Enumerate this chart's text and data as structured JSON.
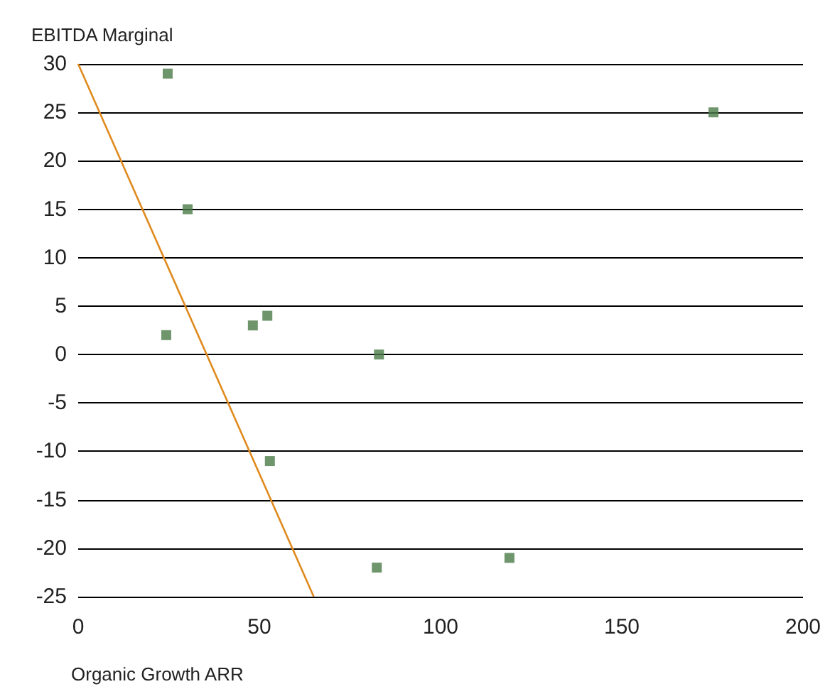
{
  "chart_data": {
    "type": "scatter",
    "ylabel": "EBITDA Marginal",
    "xlabel": "Organic Growth ARR",
    "xlim": [
      0,
      200
    ],
    "xticks": [
      0,
      50,
      100,
      150,
      200
    ],
    "ylim": [
      -25,
      30
    ],
    "yticks": [
      -25,
      -20,
      -15,
      -10,
      -5,
      0,
      5,
      10,
      15,
      20,
      25,
      30
    ],
    "grid": "y",
    "marker": "square",
    "series": [
      {
        "color": "#4a7a46",
        "x": [
          24.7,
          30.2,
          24.3,
          48.2,
          52.2,
          83,
          52.9,
          82.4,
          119,
          175.3
        ],
        "values": [
          29,
          15,
          2,
          3,
          4,
          0,
          -11,
          -22,
          -21,
          25
        ]
      },
      {
        "type": "line",
        "color": "#e08a1e",
        "marker": "none",
        "x": [
          0,
          65
        ],
        "values": [
          30,
          -25
        ]
      }
    ]
  }
}
